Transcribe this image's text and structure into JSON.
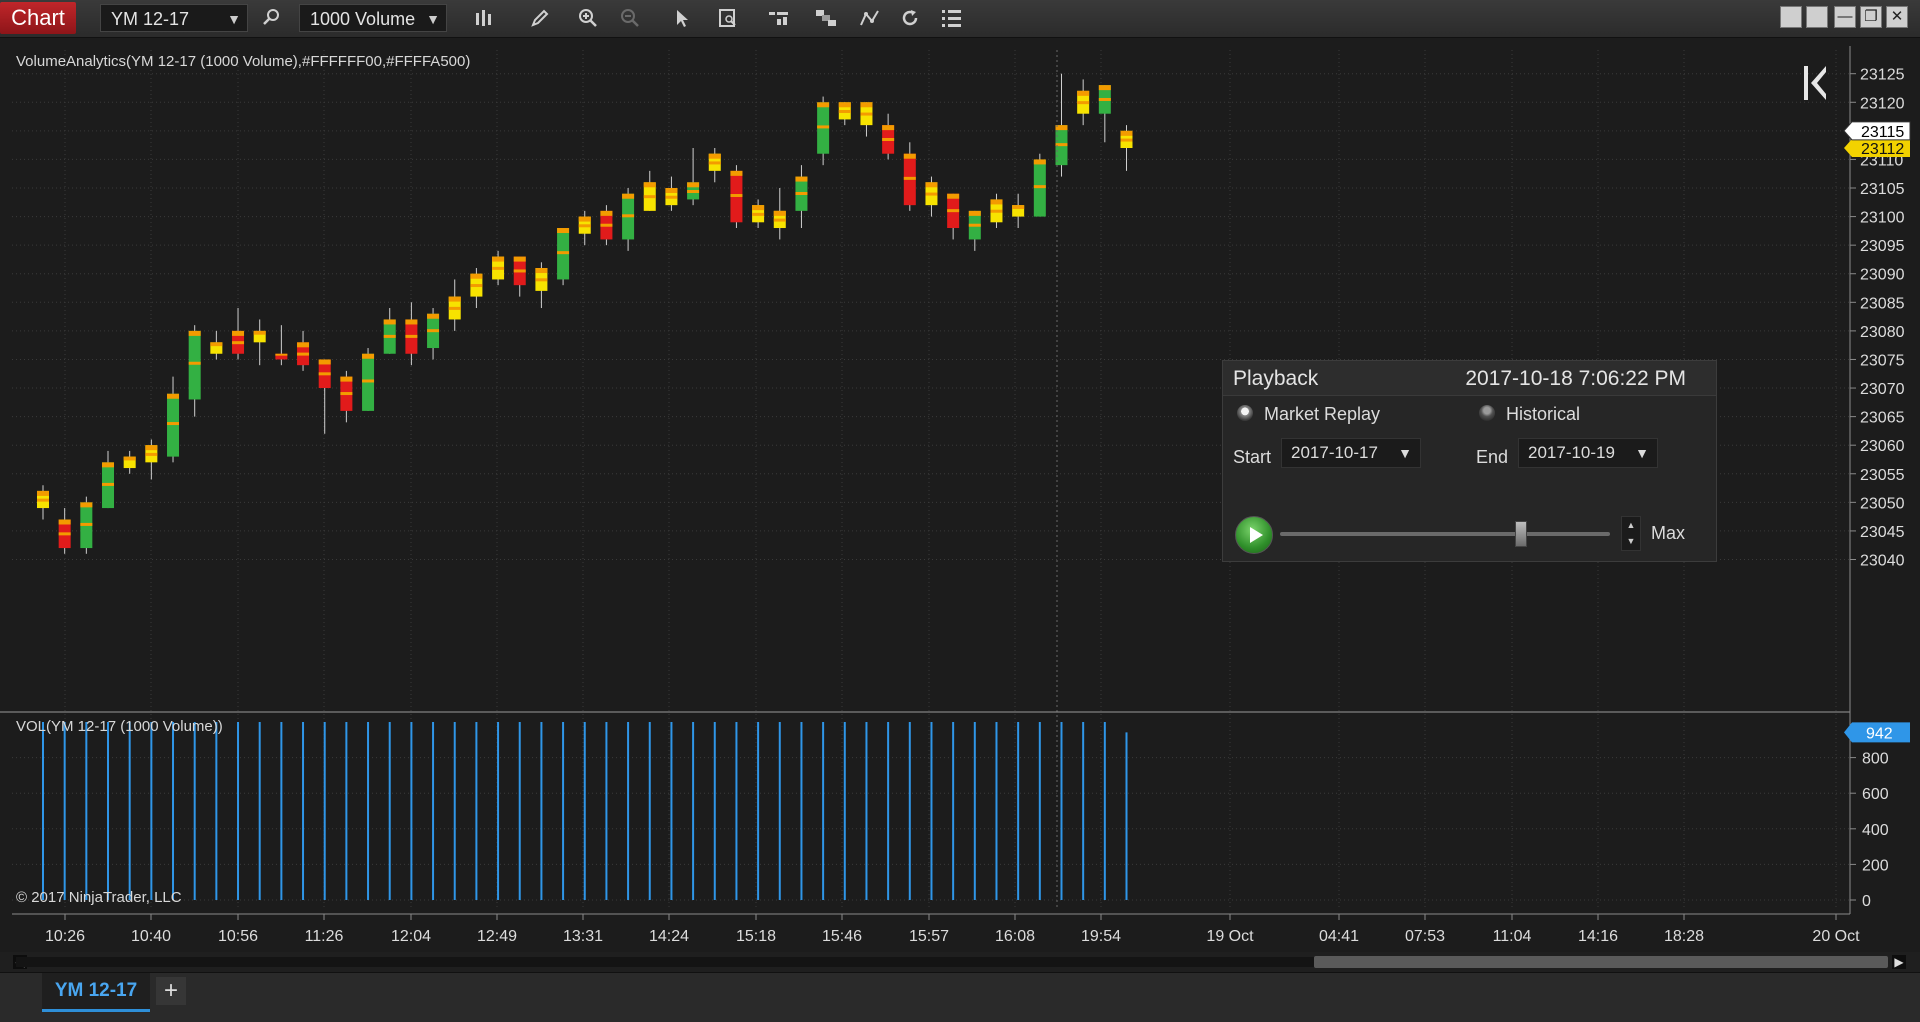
{
  "toolbar": {
    "chart_tab": "Chart",
    "instrument": "YM 12-17",
    "interval": "1000 Volume",
    "icons": [
      "search-icon",
      "bar-type-icon",
      "pencil-icon",
      "zoom-in-icon",
      "zoom-out-icon",
      "pointer-icon",
      "data-box-icon",
      "properties-icon",
      "strategy-icon",
      "drawing-tools-icon",
      "reload-icon",
      "list-icon"
    ],
    "window_icons": [
      "tile-icon",
      "tile-icon",
      "minimize-icon",
      "restore-icon",
      "close-icon"
    ]
  },
  "chart": {
    "indicator_label": "VolumeAnalytics(YM 12-17 (1000 Volume),#FFFFFF00,#FFFFA500)",
    "volume_label": "VOL(YM 12-17 (1000 Volume))",
    "copyright": "© 2017 NinjaTrader, LLC",
    "colors": {
      "up": "#33b043",
      "down": "#e11b1b",
      "neutral": "#f7e300",
      "accent": "#f39b00",
      "volume": "#2f96e8",
      "background": "#1c1c1c",
      "grid": "#3a3a3a"
    }
  },
  "chart_data": {
    "type": "candlestick",
    "price_axis": {
      "ticks": [
        23040,
        23045,
        23050,
        23055,
        23060,
        23065,
        23070,
        23075,
        23080,
        23085,
        23090,
        23095,
        23100,
        23105,
        23110,
        23115,
        23120,
        23125
      ],
      "labels": [
        "23040",
        "23045",
        "23050",
        "23055",
        "23060",
        "23065",
        "23070",
        "23075",
        "23080",
        "23085",
        "23090",
        "23095",
        "23100",
        "23105",
        "23110",
        "23115",
        "23120",
        "23125"
      ],
      "ylim": [
        23036,
        23129
      ]
    },
    "current_price": {
      "label": "23115",
      "yellow_label": "23112",
      "price": 23115,
      "yellow_price": 23112
    },
    "volume_axis": {
      "ticks": [
        0,
        200,
        400,
        600,
        800
      ],
      "labels": [
        "0",
        "200",
        "400",
        "600",
        "800"
      ],
      "ylim": [
        0,
        1000
      ]
    },
    "current_volume": {
      "label": "942",
      "value": 942
    },
    "time_axis": {
      "labels": [
        "10:26",
        "10:40",
        "10:56",
        "11:26",
        "12:04",
        "12:49",
        "13:31",
        "14:24",
        "15:18",
        "15:46",
        "15:57",
        "16:08",
        "19:54",
        "19 Oct",
        "04:41",
        "07:53",
        "11:04",
        "14:16",
        "18:28",
        "20 Oct"
      ]
    },
    "candles": [
      {
        "o": 23049,
        "h": 23053,
        "l": 23047,
        "c": 23052,
        "s": "y"
      },
      {
        "o": 23047,
        "h": 23049,
        "l": 23041,
        "c": 23042,
        "s": "r"
      },
      {
        "o": 23042,
        "h": 23051,
        "l": 23041,
        "c": 23050,
        "s": "g"
      },
      {
        "o": 23049,
        "h": 23059,
        "l": 23049,
        "c": 23057,
        "s": "g"
      },
      {
        "o": 23056,
        "h": 23059,
        "l": 23055,
        "c": 23058,
        "s": "y"
      },
      {
        "o": 23057,
        "h": 23061,
        "l": 23054,
        "c": 23060,
        "s": "y"
      },
      {
        "o": 23058,
        "h": 23072,
        "l": 23057,
        "c": 23069,
        "s": "g"
      },
      {
        "o": 23068,
        "h": 23081,
        "l": 23065,
        "c": 23080,
        "s": "g"
      },
      {
        "o": 23078,
        "h": 23080,
        "l": 23075,
        "c": 23076,
        "s": "y"
      },
      {
        "o": 23080,
        "h": 23084,
        "l": 23075,
        "c": 23076,
        "s": "r"
      },
      {
        "o": 23080,
        "h": 23082,
        "l": 23074,
        "c": 23078,
        "s": "y"
      },
      {
        "o": 23076,
        "h": 23081,
        "l": 23074,
        "c": 23075,
        "s": "r"
      },
      {
        "o": 23078,
        "h": 23080,
        "l": 23073,
        "c": 23074,
        "s": "r"
      },
      {
        "o": 23075,
        "h": 23075,
        "l": 23062,
        "c": 23070,
        "s": "r"
      },
      {
        "o": 23072,
        "h": 23073,
        "l": 23064,
        "c": 23066,
        "s": "r"
      },
      {
        "o": 23066,
        "h": 23077,
        "l": 23066,
        "c": 23076,
        "s": "g"
      },
      {
        "o": 23076,
        "h": 23084,
        "l": 23076,
        "c": 23082,
        "s": "g"
      },
      {
        "o": 23082,
        "h": 23085,
        "l": 23074,
        "c": 23076,
        "s": "r"
      },
      {
        "o": 23077,
        "h": 23084,
        "l": 23075,
        "c": 23083,
        "s": "g"
      },
      {
        "o": 23082,
        "h": 23089,
        "l": 23080,
        "c": 23086,
        "s": "y"
      },
      {
        "o": 23086,
        "h": 23091,
        "l": 23084,
        "c": 23090,
        "s": "y"
      },
      {
        "o": 23089,
        "h": 23094,
        "l": 23088,
        "c": 23093,
        "s": "y"
      },
      {
        "o": 23093,
        "h": 23093,
        "l": 23086,
        "c": 23088,
        "s": "r"
      },
      {
        "o": 23087,
        "h": 23092,
        "l": 23084,
        "c": 23091,
        "s": "y"
      },
      {
        "o": 23089,
        "h": 23098,
        "l": 23088,
        "c": 23098,
        "s": "g"
      },
      {
        "o": 23097,
        "h": 23101,
        "l": 23095,
        "c": 23100,
        "s": "y"
      },
      {
        "o": 23096,
        "h": 23102,
        "l": 23095,
        "c": 23101,
        "s": "r"
      },
      {
        "o": 23096,
        "h": 23105,
        "l": 23094,
        "c": 23104,
        "s": "g"
      },
      {
        "o": 23101,
        "h": 23108,
        "l": 23101,
        "c": 23106,
        "s": "y"
      },
      {
        "o": 23102,
        "h": 23107,
        "l": 23101,
        "c": 23105,
        "s": "y"
      },
      {
        "o": 23103,
        "h": 23112,
        "l": 23102,
        "c": 23106,
        "s": "g"
      },
      {
        "o": 23108,
        "h": 23112,
        "l": 23106,
        "c": 23111,
        "s": "y"
      },
      {
        "o": 23108,
        "h": 23109,
        "l": 23098,
        "c": 23099,
        "s": "r"
      },
      {
        "o": 23099,
        "h": 23103,
        "l": 23098,
        "c": 23102,
        "s": "y"
      },
      {
        "o": 23098,
        "h": 23105,
        "l": 23096,
        "c": 23101,
        "s": "y"
      },
      {
        "o": 23101,
        "h": 23109,
        "l": 23098,
        "c": 23107,
        "s": "g"
      },
      {
        "o": 23111,
        "h": 23121,
        "l": 23109,
        "c": 23120,
        "s": "g"
      },
      {
        "o": 23117,
        "h": 23120,
        "l": 23116,
        "c": 23120,
        "s": "y"
      },
      {
        "o": 23120,
        "h": 23120,
        "l": 23114,
        "c": 23116,
        "s": "y"
      },
      {
        "o": 23116,
        "h": 23118,
        "l": 23110,
        "c": 23111,
        "s": "r"
      },
      {
        "o": 23111,
        "h": 23113,
        "l": 23101,
        "c": 23102,
        "s": "r"
      },
      {
        "o": 23102,
        "h": 23107,
        "l": 23100,
        "c": 23106,
        "s": "y"
      },
      {
        "o": 23104,
        "h": 23104,
        "l": 23096,
        "c": 23098,
        "s": "r"
      },
      {
        "o": 23101,
        "h": 23101,
        "l": 23094,
        "c": 23096,
        "s": "g"
      },
      {
        "o": 23099,
        "h": 23104,
        "l": 23098,
        "c": 23103,
        "s": "y"
      },
      {
        "o": 23102,
        "h": 23104,
        "l": 23098,
        "c": 23100,
        "s": "y"
      },
      {
        "o": 23100,
        "h": 23111,
        "l": 23100,
        "c": 23110,
        "s": "g"
      },
      {
        "o": 23109,
        "h": 23125,
        "l": 23107,
        "c": 23116,
        "s": "g"
      },
      {
        "o": 23118,
        "h": 23124,
        "l": 23116,
        "c": 23122,
        "s": "y"
      },
      {
        "o": 23118,
        "h": 23123,
        "l": 23113,
        "c": 23123,
        "s": "g"
      },
      {
        "o": 23115,
        "h": 23116,
        "l": 23108,
        "c": 23112,
        "s": "y"
      }
    ],
    "volumes": [
      1000,
      1000,
      1000,
      1000,
      1000,
      1000,
      1000,
      1000,
      1000,
      1000,
      1000,
      1000,
      1000,
      1000,
      1000,
      1000,
      1000,
      1000,
      1000,
      1000,
      1000,
      1000,
      1000,
      1000,
      1000,
      1000,
      1000,
      1000,
      1000,
      1000,
      1000,
      1000,
      1000,
      1000,
      1000,
      1000,
      1000,
      1000,
      1000,
      1000,
      1000,
      1000,
      1000,
      1000,
      1000,
      1000,
      1000,
      1000,
      1000,
      1000,
      942
    ]
  },
  "playback": {
    "title": "Playback",
    "datetime": "2017-10-18 7:06:22 PM",
    "mode_market_replay": "Market Replay",
    "mode_historical": "Historical",
    "start_label": "Start",
    "start_value": "2017-10-17",
    "end_label": "End",
    "end_value": "2017-10-19",
    "speed_label": "Max",
    "speed_position": 0.73
  },
  "bottom": {
    "tab_label": "YM 12-17",
    "add_tab": "+"
  }
}
